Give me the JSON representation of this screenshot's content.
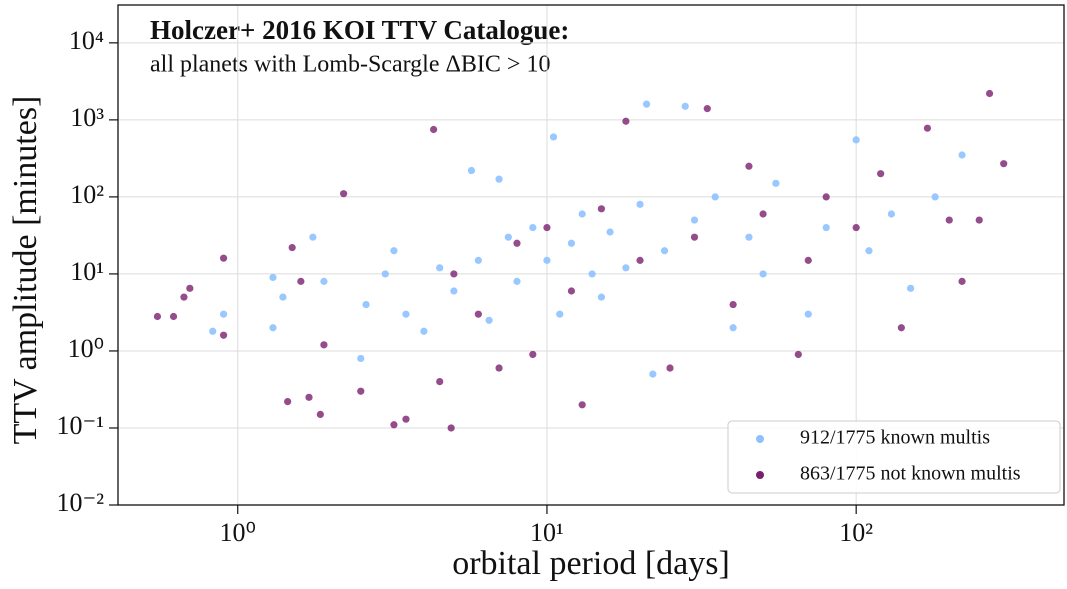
{
  "chart_data": {
    "type": "scatter",
    "title": "Holczer+ 2016 KOI TTV Catalogue:",
    "subtitle": "all planets with Lomb-Scargle ΔBIC > 10",
    "x_label": "orbital period [days]",
    "y_label": "TTV amplitude [minutes]",
    "xscale": "log",
    "yscale": "log",
    "grid": true,
    "legend": "lower right",
    "xlim": [
      0.41,
      470
    ],
    "ylim": [
      0.01,
      31000
    ],
    "xticks": [
      {
        "value": 1,
        "label": "10⁰"
      },
      {
        "value": 10,
        "label": "10¹"
      },
      {
        "value": 100,
        "label": "10²"
      }
    ],
    "yticks": [
      {
        "value": 0.01,
        "label": "10⁻²"
      },
      {
        "value": 0.1,
        "label": "10⁻¹"
      },
      {
        "value": 1,
        "label": "10⁰"
      },
      {
        "value": 10,
        "label": "10¹"
      },
      {
        "value": 100,
        "label": "10²"
      },
      {
        "value": 1000,
        "label": "10³"
      },
      {
        "value": 10000,
        "label": "10⁴"
      }
    ],
    "series": [
      {
        "name": "912/1775 known multis",
        "color": "#8ec1ff",
        "x": [
          0.83,
          0.9,
          1.3,
          1.3,
          1.4,
          1.75,
          1.9,
          2.5,
          2.6,
          3,
          3.2,
          3.5,
          4,
          4.5,
          5,
          5.7,
          6,
          6.5,
          7,
          7.5,
          8,
          9,
          10,
          10.5,
          11,
          12,
          13,
          14,
          15,
          16,
          18,
          20,
          21,
          22,
          24,
          28,
          30,
          35,
          40,
          45,
          50,
          55,
          70,
          80,
          100,
          110,
          130,
          150,
          180,
          220
        ],
        "y": [
          1.8,
          3,
          2,
          9,
          5,
          30,
          8,
          0.8,
          4,
          10,
          20,
          3,
          1.8,
          12,
          6,
          220,
          15,
          2.5,
          170,
          30,
          8,
          40,
          15,
          600,
          3,
          25,
          60,
          10,
          5,
          35,
          12,
          80,
          1600,
          0.5,
          20,
          1500,
          50,
          100,
          2,
          30,
          10,
          150,
          3,
          40,
          550,
          20,
          60,
          6.5,
          100,
          350
        ]
      },
      {
        "name": "863/1775 not known multis",
        "color": "#7a1f6e",
        "x": [
          0.55,
          0.62,
          0.67,
          0.7,
          0.9,
          0.9,
          1.45,
          1.5,
          1.6,
          1.7,
          1.85,
          1.9,
          2.2,
          2.5,
          3.2,
          3.5,
          4.3,
          4.5,
          4.9,
          5,
          6,
          7,
          8,
          9,
          10,
          12,
          13,
          15,
          18,
          20,
          25,
          30,
          33,
          40,
          45,
          50,
          65,
          70,
          80,
          100,
          120,
          140,
          170,
          200,
          220,
          250,
          270,
          300
        ],
        "y": [
          2.8,
          2.8,
          5,
          6.5,
          16,
          1.6,
          0.22,
          22,
          8,
          0.25,
          0.15,
          1.2,
          110,
          0.3,
          0.11,
          0.13,
          750,
          0.4,
          0.1,
          10,
          3,
          0.6,
          25,
          0.9,
          40,
          6,
          0.2,
          70,
          960,
          15,
          0.6,
          30,
          1400,
          4,
          250,
          60,
          0.9,
          15,
          100,
          40,
          200,
          2,
          780,
          50,
          8,
          50,
          2200,
          270
        ]
      }
    ]
  }
}
